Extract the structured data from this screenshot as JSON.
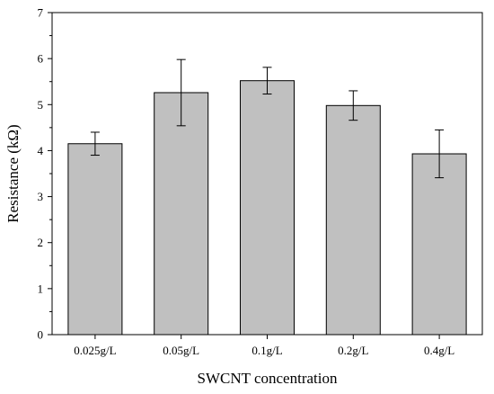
{
  "chart_data": {
    "type": "bar",
    "title": "",
    "xlabel": "SWCNT concentration",
    "ylabel": "Resistance (kΩ)",
    "categories": [
      "0.025g/L",
      "0.05g/L",
      "0.1g/L",
      "0.2g/L",
      "0.4g/L"
    ],
    "values": [
      4.15,
      5.26,
      5.52,
      4.98,
      3.93
    ],
    "error": [
      0.25,
      0.72,
      0.29,
      0.32,
      0.52
    ],
    "ylim": [
      0,
      7
    ],
    "yticks": [
      0,
      1,
      2,
      3,
      4,
      5,
      6,
      7
    ],
    "grid": false,
    "legend": "none",
    "colors": {
      "bar_fill": "#c0c0c0",
      "bar_stroke": "#000000",
      "axis": "#000000"
    }
  }
}
